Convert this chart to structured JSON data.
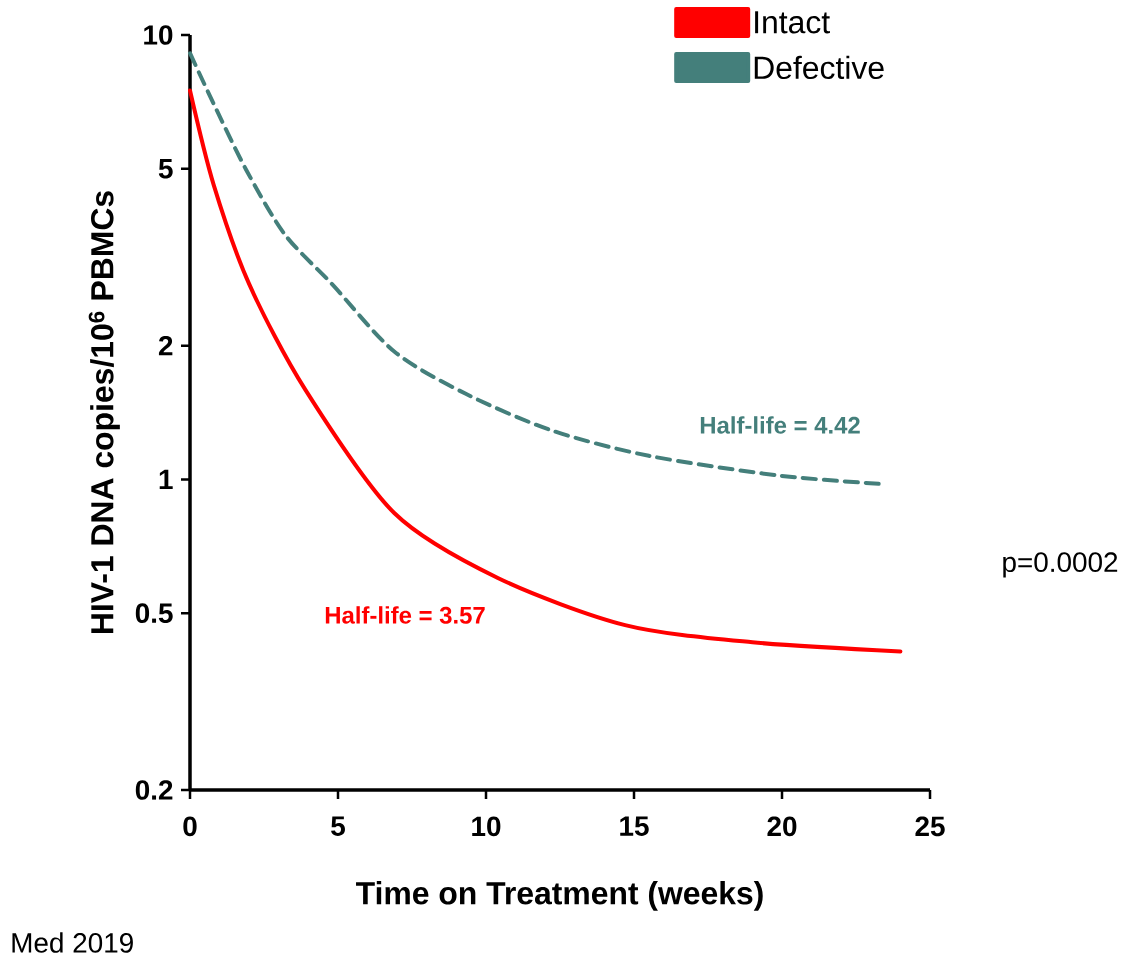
{
  "chart_data": {
    "type": "line",
    "xlabel": "Time on Treatment (weeks)",
    "ylabel": "HIV-1 DNA copies/10$^{6}$ PBMCs",
    "log": "y",
    "xlim": [
      0,
      25
    ],
    "ylim": [
      0.2,
      10
    ],
    "xticks": [
      0,
      5,
      10,
      15,
      20,
      25
    ],
    "yticks": [
      0.2,
      0.5,
      1,
      2,
      5,
      10
    ],
    "legend": "top right",
    "grid": false,
    "marker": "none",
    "series": [
      {
        "name": "Intact",
        "color": "#ff0000",
        "line_style": "solid",
        "x": [
          0,
          0.8,
          2.0,
          3.9,
          6.9,
          10.4,
          14.7,
          19.0,
          24
        ],
        "values": [
          7.5,
          4.6,
          2.75,
          1.59,
          0.84,
          0.6,
          0.47,
          0.43,
          0.41
        ]
      },
      {
        "name": "Defective",
        "color": "#447f7b",
        "line_style": "dashed",
        "x": [
          0,
          0.8,
          1.9,
          3.2,
          4.8,
          6.9,
          9.3,
          12.2,
          15.5,
          19.9,
          23.5
        ],
        "values": [
          9.1,
          7.0,
          4.97,
          3.56,
          2.75,
          1.94,
          1.56,
          1.29,
          1.13,
          1.02,
          0.975
        ]
      }
    ],
    "annotations": [
      "Half-life = 3.57",
      "Half-life = 4.42",
      "p=0.0002",
      "Med 2019"
    ]
  }
}
